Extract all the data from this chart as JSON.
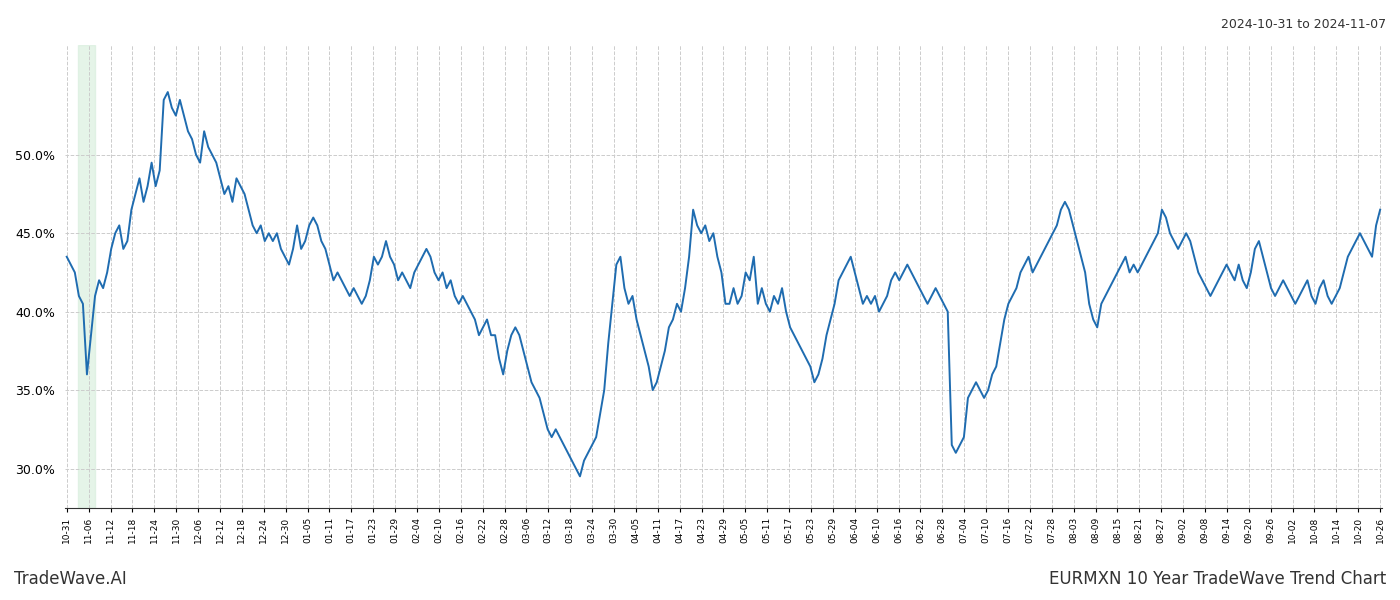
{
  "title_right": "2024-10-31 to 2024-11-07",
  "title_bottom_left": "TradeWave.AI",
  "title_bottom_right": "EURMXN 10 Year TradeWave Trend Chart",
  "line_color": "#1f6cb0",
  "line_width": 1.4,
  "shade_color": "#d4edda",
  "shade_alpha": 0.6,
  "background_color": "#ffffff",
  "grid_color": "#cccccc",
  "ylim": [
    27.5,
    57.0
  ],
  "yticks": [
    30.0,
    35.0,
    40.0,
    45.0,
    50.0
  ],
  "x_labels": [
    "10-31",
    "11-06",
    "11-12",
    "11-18",
    "11-24",
    "11-30",
    "12-06",
    "12-12",
    "12-18",
    "12-24",
    "12-30",
    "01-05",
    "01-11",
    "01-17",
    "01-23",
    "01-29",
    "02-04",
    "02-10",
    "02-16",
    "02-22",
    "02-28",
    "03-06",
    "03-12",
    "03-18",
    "03-24",
    "03-30",
    "04-05",
    "04-11",
    "04-17",
    "04-23",
    "04-29",
    "05-05",
    "05-11",
    "05-17",
    "05-23",
    "05-29",
    "06-04",
    "06-10",
    "06-16",
    "06-22",
    "06-28",
    "07-04",
    "07-10",
    "07-16",
    "07-22",
    "07-28",
    "08-03",
    "08-09",
    "08-15",
    "08-21",
    "08-27",
    "09-02",
    "09-08",
    "09-14",
    "09-20",
    "09-26",
    "10-02",
    "10-08",
    "10-14",
    "10-20",
    "10-26"
  ],
  "shade_x_start_label": "11-06",
  "shade_x_end_label": "11-12",
  "values": [
    43.5,
    43.0,
    42.5,
    41.0,
    40.5,
    36.0,
    38.5,
    41.0,
    42.0,
    41.5,
    42.5,
    44.0,
    45.0,
    45.5,
    44.0,
    44.5,
    46.5,
    47.5,
    48.5,
    47.0,
    48.0,
    49.5,
    48.0,
    49.0,
    53.5,
    54.0,
    53.0,
    52.5,
    53.5,
    52.5,
    51.5,
    51.0,
    50.0,
    49.5,
    51.5,
    50.5,
    50.0,
    49.5,
    48.5,
    47.5,
    48.0,
    47.0,
    48.5,
    48.0,
    47.5,
    46.5,
    45.5,
    45.0,
    45.5,
    44.5,
    45.0,
    44.5,
    45.0,
    44.0,
    43.5,
    43.0,
    44.0,
    45.5,
    44.0,
    44.5,
    45.5,
    46.0,
    45.5,
    44.5,
    44.0,
    43.0,
    42.0,
    42.5,
    42.0,
    41.5,
    41.0,
    41.5,
    41.0,
    40.5,
    41.0,
    42.0,
    43.5,
    43.0,
    43.5,
    44.5,
    43.5,
    43.0,
    42.0,
    42.5,
    42.0,
    41.5,
    42.5,
    43.0,
    43.5,
    44.0,
    43.5,
    42.5,
    42.0,
    42.5,
    41.5,
    42.0,
    41.0,
    40.5,
    41.0,
    40.5,
    40.0,
    39.5,
    38.5,
    39.0,
    39.5,
    38.5,
    38.5,
    37.0,
    36.0,
    37.5,
    38.5,
    39.0,
    38.5,
    37.5,
    36.5,
    35.5,
    35.0,
    34.5,
    33.5,
    32.5,
    32.0,
    32.5,
    32.0,
    31.5,
    31.0,
    30.5,
    30.0,
    29.5,
    30.5,
    31.0,
    31.5,
    32.0,
    33.5,
    35.0,
    38.0,
    40.5,
    43.0,
    43.5,
    41.5,
    40.5,
    41.0,
    39.5,
    38.5,
    37.5,
    36.5,
    35.0,
    35.5,
    36.5,
    37.5,
    39.0,
    39.5,
    40.5,
    40.0,
    41.5,
    43.5,
    46.5,
    45.5,
    45.0,
    45.5,
    44.5,
    45.0,
    43.5,
    42.5,
    40.5,
    40.5,
    41.5,
    40.5,
    41.0,
    42.5,
    42.0,
    43.5,
    40.5,
    41.5,
    40.5,
    40.0,
    41.0,
    40.5,
    41.5,
    40.0,
    39.0,
    38.5,
    38.0,
    37.5,
    37.0,
    36.5,
    35.5,
    36.0,
    37.0,
    38.5,
    39.5,
    40.5,
    42.0,
    42.5,
    43.0,
    43.5,
    42.5,
    41.5,
    40.5,
    41.0,
    40.5,
    41.0,
    40.0,
    40.5,
    41.0,
    42.0,
    42.5,
    42.0,
    42.5,
    43.0,
    42.5,
    42.0,
    41.5,
    41.0,
    40.5,
    41.0,
    41.5,
    41.0,
    40.5,
    40.0,
    31.5,
    31.0,
    31.5,
    32.0,
    34.5,
    35.0,
    35.5,
    35.0,
    34.5,
    35.0,
    36.0,
    36.5,
    38.0,
    39.5,
    40.5,
    41.0,
    41.5,
    42.5,
    43.0,
    43.5,
    42.5,
    43.0,
    43.5,
    44.0,
    44.5,
    45.0,
    45.5,
    46.5,
    47.0,
    46.5,
    45.5,
    44.5,
    43.5,
    42.5,
    40.5,
    39.5,
    39.0,
    40.5,
    41.0,
    41.5,
    42.0,
    42.5,
    43.0,
    43.5,
    42.5,
    43.0,
    42.5,
    43.0,
    43.5,
    44.0,
    44.5,
    45.0,
    46.5,
    46.0,
    45.0,
    44.5,
    44.0,
    44.5,
    45.0,
    44.5,
    43.5,
    42.5,
    42.0,
    41.5,
    41.0,
    41.5,
    42.0,
    42.5,
    43.0,
    42.5,
    42.0,
    43.0,
    42.0,
    41.5,
    42.5,
    44.0,
    44.5,
    43.5,
    42.5,
    41.5,
    41.0,
    41.5,
    42.0,
    41.5,
    41.0,
    40.5,
    41.0,
    41.5,
    42.0,
    41.0,
    40.5,
    41.5,
    42.0,
    41.0,
    40.5,
    41.0,
    41.5,
    42.5,
    43.5,
    44.0,
    44.5,
    45.0,
    44.5,
    44.0,
    43.5,
    45.5,
    46.5
  ]
}
